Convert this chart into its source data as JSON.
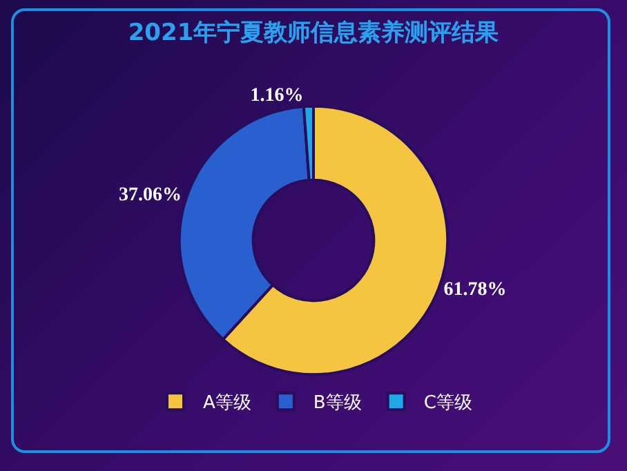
{
  "chart_data": {
    "type": "donut",
    "title": "2021年宁夏教师信息素养测评结果",
    "categories": [
      "A等级",
      "B等级",
      "C等级"
    ],
    "values": [
      61.78,
      37.06,
      1.16
    ],
    "colors": [
      "#f5c542",
      "#2a5fd0",
      "#1fa8e8"
    ],
    "value_labels": [
      "61.78%",
      "37.06%",
      "1.16%"
    ],
    "legend": "bottom"
  }
}
